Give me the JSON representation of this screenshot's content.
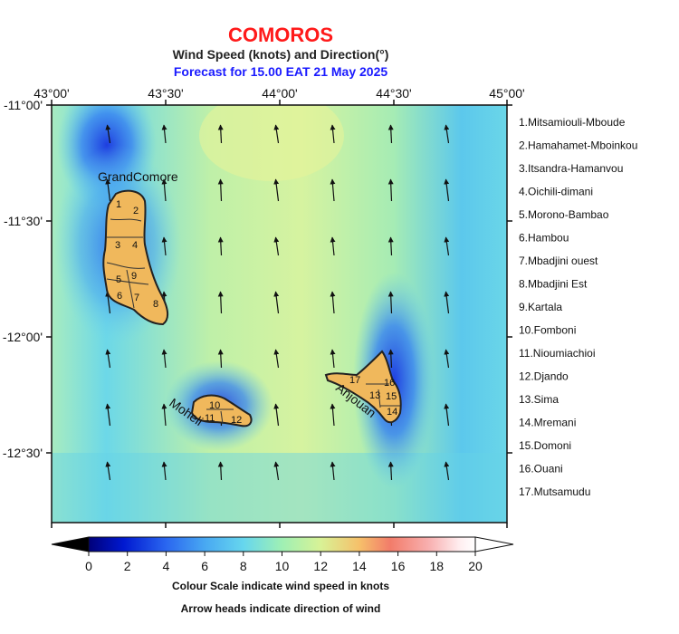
{
  "header": {
    "title": "COMOROS",
    "subtitle": "Wind Speed (knots) and Direction(°)",
    "forecast": "Forecast for  15.00 EAT 21 May 2025"
  },
  "axes": {
    "lon_labels": [
      "43°00'",
      "43°30'",
      "44°00'",
      "44°30'",
      "45°00'"
    ],
    "lat_labels": [
      "-11°00'",
      "-11°30'",
      "-12°00'",
      "-12°30'"
    ]
  },
  "islands": {
    "grand_comore": "GrandComore",
    "moheli": "Moheli",
    "anjouan": "Anjouan",
    "region_numbers": [
      "1",
      "2",
      "3",
      "4",
      "5",
      "6",
      "7",
      "8",
      "9",
      "10",
      "11",
      "12",
      "13",
      "14",
      "15",
      "16",
      "17"
    ]
  },
  "legend_items": [
    "1.Mitsamiouli-Mboude",
    "2.Hamahamet-Mboinkou",
    "3.Itsandra-Hamanvou",
    "4.Oichili-dimani",
    "5.Morono-Bambao",
    "6.Hambou",
    "7.Mbadjini ouest",
    "8.Mbadjini Est",
    "9.Kartala",
    "10.Fomboni",
    "11.Nioumiachioi",
    "12.Djando",
    "13.Sima",
    "14.Mremani",
    "15.Domoni",
    "16.Ouani",
    "17.Mutsamudu"
  ],
  "colorbar": {
    "ticks": [
      "0",
      "2",
      "4",
      "6",
      "8",
      "10",
      "12",
      "14",
      "16",
      "18",
      "20"
    ],
    "caption": "Colour Scale indicate wind speed in knots",
    "arrow_caption": "Arrow heads indicate direction of wind",
    "stops": [
      "#00007a",
      "#0019d0",
      "#2a66f0",
      "#48a8f2",
      "#66d6ee",
      "#9ff0b4",
      "#d8f296",
      "#f6c06a",
      "#f27c6a",
      "#f8b0b0",
      "#ffeef0",
      "#ffffff"
    ]
  },
  "colors": {
    "title": "#ff1a1a",
    "forecast": "#1a1aff",
    "land": "#f0b85c"
  }
}
